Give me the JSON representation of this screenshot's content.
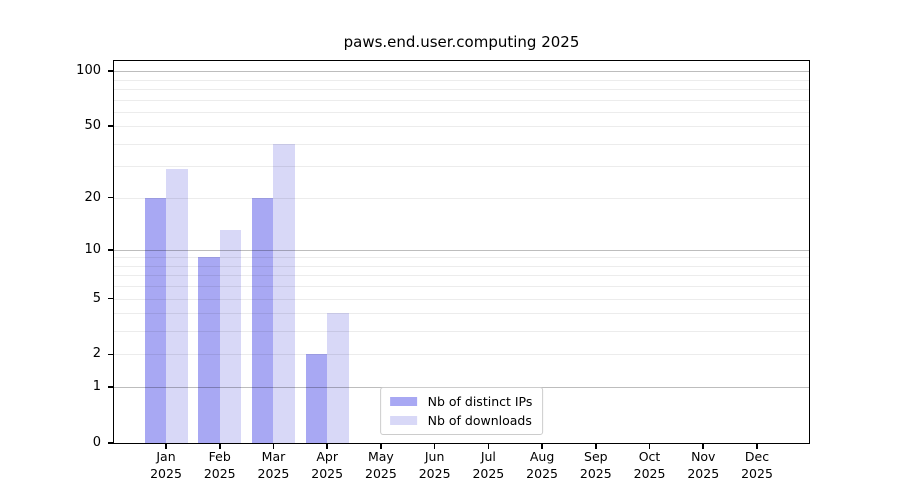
{
  "title": "paws.end.user.computing 2025",
  "chart_data": {
    "type": "bar",
    "title": "paws.end.user.computing 2025",
    "categories": [
      "Jan 2025",
      "Feb 2025",
      "Mar 2025",
      "Apr 2025",
      "May 2025",
      "Jun 2025",
      "Jul 2025",
      "Aug 2025",
      "Sep 2025",
      "Oct 2025",
      "Nov 2025",
      "Dec 2025"
    ],
    "x_tick_months": [
      "Jan",
      "Feb",
      "Mar",
      "Apr",
      "May",
      "Jun",
      "Jul",
      "Aug",
      "Sep",
      "Oct",
      "Nov",
      "Dec"
    ],
    "x_tick_year": "2025",
    "series": [
      {
        "name": "Nb of distinct IPs",
        "color": "#a8a8f3",
        "values": [
          20,
          9,
          20,
          2,
          null,
          null,
          null,
          null,
          null,
          null,
          null,
          null
        ]
      },
      {
        "name": "Nb of downloads",
        "color": "#d8d8f7",
        "values": [
          29,
          13,
          40,
          4,
          null,
          null,
          null,
          null,
          null,
          null,
          null,
          null
        ]
      }
    ],
    "yscale": "log1p",
    "ylim": [
      0,
      115
    ],
    "y_ticks": [
      0,
      1,
      2,
      5,
      10,
      20,
      50,
      100
    ],
    "y_major_gridlines": [
      1,
      10,
      100
    ],
    "y_minor_gridlines": [
      2,
      3,
      4,
      5,
      6,
      7,
      8,
      9,
      20,
      30,
      40,
      50,
      60,
      70,
      80,
      90
    ],
    "grid": true,
    "legend_position": "lower center",
    "xlabel": "",
    "ylabel": ""
  },
  "legend": {
    "items": [
      {
        "label": "Nb of distinct IPs",
        "color": "#a8a8f3"
      },
      {
        "label": "Nb of downloads",
        "color": "#d8d8f7"
      }
    ]
  },
  "colors": {
    "background": "#ffffff",
    "axis_frame": "#000000",
    "major_grid": "#bdbdbd",
    "minor_grid": "#ececec",
    "legend_border": "#cccccc"
  }
}
